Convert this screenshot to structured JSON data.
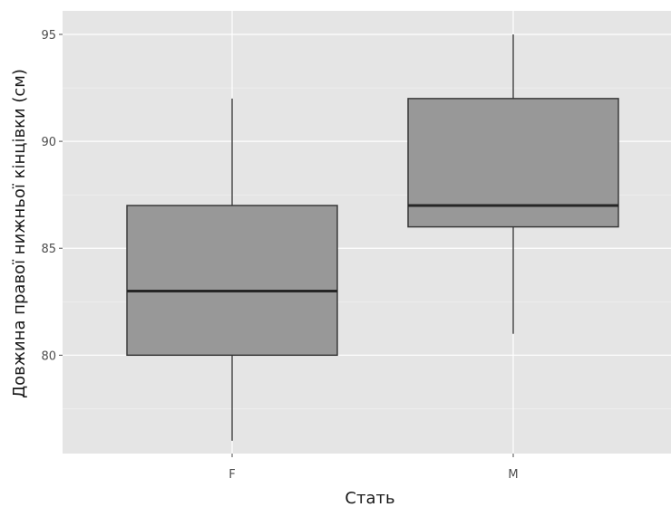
{
  "chart_data": {
    "type": "boxplot",
    "xlabel": "Стать",
    "ylabel": "Довжина правої нижньої кінцівки (см)",
    "categories": [
      "F",
      "M"
    ],
    "boxes": [
      {
        "category": "F",
        "min": 76,
        "q1": 80,
        "median": 83,
        "q3": 87,
        "max": 92
      },
      {
        "category": "M",
        "min": 81,
        "q1": 86,
        "median": 87,
        "q3": 92,
        "max": 95
      }
    ],
    "y_ticks": [
      80,
      85,
      90,
      95
    ],
    "y_minor_ticks": [
      77.5,
      82.5,
      87.5,
      92.5
    ],
    "ylim": [
      75.4,
      96.1
    ],
    "grid": true,
    "legend": "none",
    "colors": {
      "panel": "#e5e5e5",
      "box_fill": "#989898",
      "box_stroke": "#333333",
      "grid": "#ffffff"
    }
  }
}
